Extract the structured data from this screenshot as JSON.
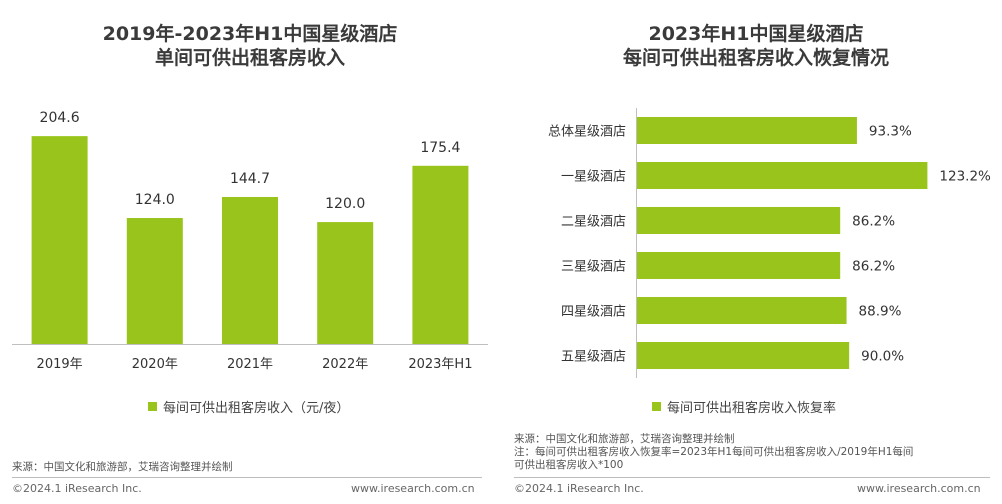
{
  "left": {
    "title_line1": "2019年-2023年H1中国星级酒店",
    "title_line2": "单间可供出租客房收入",
    "legend": "每间可供出租客房收入（元/夜）",
    "source": "来源：中国文化和旅游部，艾瑞咨询整理并绘制",
    "footer_left": "©2024.1 iResearch Inc.",
    "footer_right": "www.iresearch.com.cn"
  },
  "right": {
    "title_line1": "2023年H1中国星级酒店",
    "title_line2": "每间可供出租客房收入恢复情况",
    "legend": "每间可供出租客房收入恢复率",
    "source_line1": "来源：中国文化和旅游部，艾瑞咨询整理并绘制",
    "source_line2": "注：每间可供出租客房收入恢复率=2023年H1每间可供出租客房收入/2019年H1每间",
    "source_line3": "可供出租客房收入*100",
    "footer_left": "©2024.1 iResearch Inc.",
    "footer_right": "www.iresearch.com.cn"
  },
  "colors": {
    "bar": "#99c41c",
    "text": "#333333",
    "axis": "#bfbfbf"
  },
  "chart_data": [
    {
      "type": "bar",
      "title": "2019年-2023年H1中国星级酒店 单间可供出租客房收入",
      "categories": [
        "2019年",
        "2020年",
        "2021年",
        "2022年",
        "2023年H1"
      ],
      "values": [
        204.6,
        124.0,
        144.7,
        120.0,
        175.4
      ],
      "labels": [
        "204.6",
        "124.0",
        "144.7",
        "120.0",
        "175.4"
      ],
      "series_name": "每间可供出租客房收入（元/夜）",
      "ylim": [
        0,
        250
      ]
    },
    {
      "type": "bar",
      "orientation": "horizontal",
      "title": "2023年H1中国星级酒店 每间可供出租客房收入恢复情况",
      "categories": [
        "总体星级酒店",
        "一星级酒店",
        "二星级酒店",
        "三星级酒店",
        "四星级酒店",
        "五星级酒店"
      ],
      "values": [
        93.3,
        123.2,
        86.2,
        86.2,
        88.9,
        90.0
      ],
      "labels": [
        "93.3%",
        "123.2%",
        "86.2%",
        "86.2%",
        "88.9%",
        "90.0%"
      ],
      "series_name": "每间可供出租客房收入恢复率",
      "xlim": [
        0,
        140
      ]
    }
  ]
}
